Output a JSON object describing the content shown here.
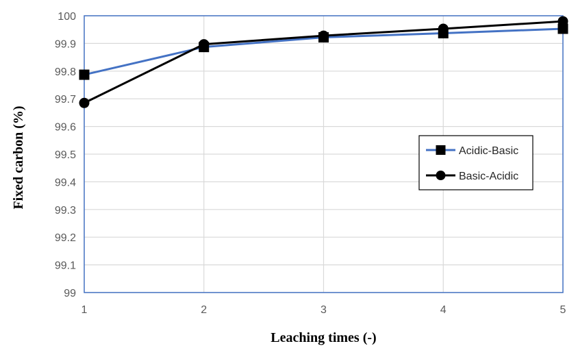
{
  "chart_data": {
    "type": "line",
    "title": "",
    "xlabel": "Leaching times (-)",
    "ylabel": "Fixed carbon (%)",
    "x": [
      1,
      2,
      3,
      4,
      5
    ],
    "xlim": [
      1,
      5
    ],
    "ylim": [
      99,
      100
    ],
    "x_ticks": [
      "1",
      "2",
      "3",
      "4",
      "5"
    ],
    "y_ticks": [
      "99",
      "99.1",
      "99.2",
      "99.3",
      "99.4",
      "99.5",
      "99.6",
      "99.7",
      "99.8",
      "99.9",
      "100"
    ],
    "grid": true,
    "legend_position": "right",
    "series": [
      {
        "name": "Acidic-Basic",
        "values": [
          99.787,
          99.887,
          99.922,
          99.937,
          99.953
        ],
        "color": "#4472c4",
        "marker": "square",
        "marker_color": "#000000"
      },
      {
        "name": "Basic-Acidic",
        "values": [
          99.685,
          99.897,
          99.928,
          99.953,
          99.98
        ],
        "color": "#000000",
        "marker": "circle",
        "marker_color": "#000000"
      }
    ],
    "plot_border_color": "#4472c4",
    "grid_color": "#d9d9d9"
  }
}
